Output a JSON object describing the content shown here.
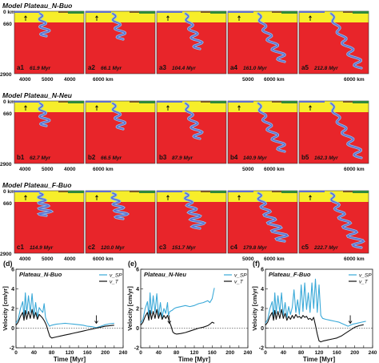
{
  "colors": {
    "mantle": "#e8252a",
    "crust_yellow": "#f7ee2a",
    "lithosphere_green": "#2f8a3c",
    "slab_blue": "#5f6fd0",
    "slab_outline": "#8bc4ee",
    "v_sp": "#3aa9d8",
    "v_t": "#111111"
  },
  "rows": [
    {
      "title": "Model Plateau_N-Buo",
      "panels": [
        {
          "label": "a1",
          "time": "61.9 Myr"
        },
        {
          "label": "a2",
          "time": "66.1 Myr"
        },
        {
          "label": "a3",
          "time": "104.4 Myr"
        },
        {
          "label": "a4",
          "time": "161.0 Myr"
        },
        {
          "label": "a5",
          "time": "212.8 Myr"
        }
      ]
    },
    {
      "title": "Model Plateau_N-Neu",
      "panels": [
        {
          "label": "b1",
          "time": "62.7 Myr"
        },
        {
          "label": "b2",
          "time": "66.5 Myr"
        },
        {
          "label": "b3",
          "time": "87.9 Myr"
        },
        {
          "label": "b4",
          "time": "140.9 Myr"
        },
        {
          "label": "b5",
          "time": "162.3 Myr"
        }
      ]
    },
    {
      "title": "Model Plateau_F-Buo",
      "panels": [
        {
          "label": "c1",
          "time": "114.9 Myr"
        },
        {
          "label": "c2",
          "time": "120.0 Myr"
        },
        {
          "label": "c3",
          "time": "151.7 Myr"
        },
        {
          "label": "c4",
          "time": "179.8 Myr"
        },
        {
          "label": "c5",
          "time": "222.7 Myr"
        }
      ]
    }
  ],
  "depth_ticks": [
    "0 km",
    "660",
    "2900"
  ],
  "x_ticks_pair": [
    "4000",
    "5000"
  ],
  "x_tick_last": "6000 km",
  "x_tick_last_wide": [
    "5000",
    "6000 km"
  ],
  "chart_data": [
    {
      "type": "line",
      "panel": "(d)",
      "title": "Plateau_N-Buo",
      "xlabel": "Time [Myr]",
      "ylabel": "Velocity [cm/yr]",
      "xlim": [
        0,
        240
      ],
      "ylim": [
        -2,
        6
      ],
      "xticks": [
        "0",
        "20",
        "40",
        "60",
        "80",
        "100",
        "120",
        "140",
        "160",
        "180",
        "200",
        "220",
        "240"
      ],
      "yticks": [
        "-2",
        "0",
        "2",
        "4",
        "6"
      ],
      "legend": [
        "v_SP",
        "v_T"
      ],
      "legend_position": "top-right",
      "series": [
        {
          "name": "v_SP",
          "x": [
            0,
            5,
            10,
            15,
            18,
            21,
            24,
            28,
            32,
            36,
            40,
            44,
            48,
            52,
            56,
            60,
            63,
            66,
            70,
            75,
            80,
            90,
            100,
            110,
            120,
            130,
            140,
            150,
            160,
            170,
            180,
            190,
            200,
            210,
            220
          ],
          "y": [
            0.5,
            0.9,
            2.0,
            2.7,
            1.2,
            3.6,
            1.5,
            3.3,
            1.6,
            3.5,
            1.3,
            2.6,
            1.1,
            2.1,
            1.8,
            1.6,
            2.5,
            1.1,
            0.6,
            0.2,
            0.3,
            0.4,
            0.45,
            0.5,
            0.45,
            0.4,
            0.35,
            0.3,
            0.2,
            0.15,
            0.05,
            0.2,
            0.35,
            0.45,
            0.5
          ]
        },
        {
          "name": "v_T",
          "x": [
            0,
            5,
            10,
            15,
            18,
            21,
            24,
            28,
            32,
            36,
            40,
            44,
            48,
            52,
            56,
            60,
            64,
            68,
            72,
            76,
            80,
            90,
            100,
            110,
            120,
            130,
            140,
            150,
            160,
            170,
            180,
            190,
            200,
            210,
            220
          ],
          "y": [
            0.3,
            0.6,
            1.2,
            1.6,
            0.8,
            1.8,
            0.9,
            1.7,
            1.0,
            1.9,
            1.0,
            1.6,
            0.9,
            1.4,
            1.2,
            1.0,
            0.7,
            0.3,
            -0.3,
            -0.85,
            -1.0,
            -0.9,
            -0.8,
            -0.7,
            -0.6,
            -0.5,
            -0.4,
            -0.3,
            -0.2,
            -0.1,
            0.0,
            0.1,
            0.2,
            0.25,
            0.3
          ]
        }
      ],
      "annotations": [
        {
          "type": "arrow",
          "x": 180
        }
      ]
    },
    {
      "type": "line",
      "panel": "(e)",
      "title": "Plateau_N-Neu",
      "xlabel": "Time [Myr]",
      "ylabel": "Velocity [cm/yr]",
      "xlim": [
        0,
        240
      ],
      "ylim": [
        -2,
        6
      ],
      "xticks": [
        "0",
        "20",
        "40",
        "60",
        "80",
        "100",
        "120",
        "140",
        "160",
        "180",
        "200",
        "220",
        "240"
      ],
      "yticks": [
        "-2",
        "0",
        "2",
        "4",
        "6"
      ],
      "legend": [
        "v_SP",
        "v_T"
      ],
      "legend_position": "top-right",
      "series": [
        {
          "name": "v_SP",
          "x": [
            0,
            5,
            10,
            15,
            18,
            21,
            24,
            28,
            32,
            36,
            40,
            44,
            48,
            52,
            56,
            60,
            62,
            65,
            70,
            75,
            80,
            90,
            100,
            110,
            120,
            130,
            140,
            150,
            155,
            160,
            165
          ],
          "y": [
            0.5,
            0.9,
            2.0,
            2.7,
            1.2,
            3.6,
            1.5,
            3.3,
            1.6,
            3.5,
            1.3,
            2.6,
            1.1,
            2.0,
            1.5,
            2.6,
            1.3,
            1.7,
            1.8,
            2.0,
            2.1,
            2.2,
            2.3,
            2.2,
            2.3,
            2.5,
            2.6,
            2.8,
            2.6,
            3.0,
            4.1
          ]
        },
        {
          "name": "v_T",
          "x": [
            0,
            5,
            10,
            15,
            18,
            21,
            24,
            28,
            32,
            36,
            40,
            44,
            48,
            52,
            56,
            60,
            64,
            68,
            72,
            76,
            80,
            90,
            100,
            110,
            120,
            130,
            140,
            150,
            155,
            160,
            165
          ],
          "y": [
            0.3,
            0.6,
            1.2,
            1.6,
            0.8,
            1.8,
            0.9,
            1.7,
            1.0,
            1.9,
            1.0,
            1.6,
            0.9,
            1.3,
            1.0,
            1.3,
            0.7,
            0.2,
            -0.4,
            -0.55,
            -0.6,
            -0.55,
            -0.45,
            -0.3,
            -0.15,
            0.0,
            0.1,
            0.25,
            0.4,
            0.6,
            0.5
          ]
        }
      ],
      "annotations": [
        {
          "type": "arrow",
          "x": 64
        }
      ]
    },
    {
      "type": "line",
      "panel": "(f)",
      "title": "Plateau_F-Buo",
      "xlabel": "Time [Myr]",
      "ylabel": "Velocity [cm/yr]",
      "xlim": [
        0,
        240
      ],
      "ylim": [
        -2,
        6
      ],
      "xticks": [
        "0",
        "20",
        "40",
        "60",
        "80",
        "100",
        "120",
        "140",
        "160",
        "180",
        "200",
        "220",
        "240"
      ],
      "yticks": [
        "-2",
        "0",
        "2",
        "4",
        "6"
      ],
      "legend": [
        "v_SP",
        "v_T"
      ],
      "legend_position": "top-right",
      "series": [
        {
          "name": "v_SP",
          "x": [
            0,
            5,
            10,
            15,
            18,
            21,
            24,
            28,
            32,
            36,
            40,
            44,
            48,
            52,
            56,
            60,
            64,
            68,
            72,
            76,
            80,
            84,
            88,
            92,
            96,
            100,
            104,
            108,
            112,
            116,
            120,
            124,
            128,
            135,
            145,
            155,
            165,
            175,
            185,
            195,
            205,
            215,
            225
          ],
          "y": [
            0.5,
            0.9,
            2.0,
            2.7,
            1.2,
            3.6,
            1.5,
            3.3,
            1.6,
            3.6,
            1.3,
            2.6,
            1.1,
            2.2,
            1.4,
            2.1,
            3.9,
            1.6,
            2.9,
            1.4,
            4.4,
            1.7,
            4.6,
            1.9,
            3.6,
            1.6,
            4.6,
            2.0,
            5.0,
            1.6,
            4.4,
            1.3,
            1.0,
            0.9,
            0.8,
            0.7,
            0.6,
            0.4,
            0.2,
            0.4,
            0.5,
            0.6,
            0.7
          ]
        },
        {
          "name": "v_T",
          "x": [
            0,
            5,
            10,
            15,
            18,
            21,
            24,
            28,
            32,
            36,
            40,
            44,
            48,
            52,
            56,
            60,
            64,
            68,
            72,
            76,
            80,
            84,
            88,
            92,
            96,
            100,
            104,
            108,
            112,
            116,
            120,
            124,
            130,
            140,
            150,
            160,
            170,
            180,
            190,
            200,
            210,
            220
          ],
          "y": [
            0.3,
            0.6,
            1.2,
            1.6,
            0.8,
            1.8,
            0.9,
            1.7,
            1.0,
            1.9,
            1.0,
            1.5,
            0.8,
            1.2,
            0.9,
            1.3,
            1.0,
            1.4,
            1.1,
            1.2,
            1.0,
            1.3,
            1.1,
            1.2,
            0.9,
            1.0,
            0.8,
            1.1,
            0.3,
            -0.6,
            -1.3,
            -1.4,
            -1.3,
            -1.2,
            -1.1,
            -1.0,
            -0.8,
            -0.5,
            -0.2,
            0.1,
            0.25,
            0.35
          ]
        }
      ],
      "annotations": [
        {
          "type": "arrow",
          "x": 190
        }
      ]
    }
  ]
}
